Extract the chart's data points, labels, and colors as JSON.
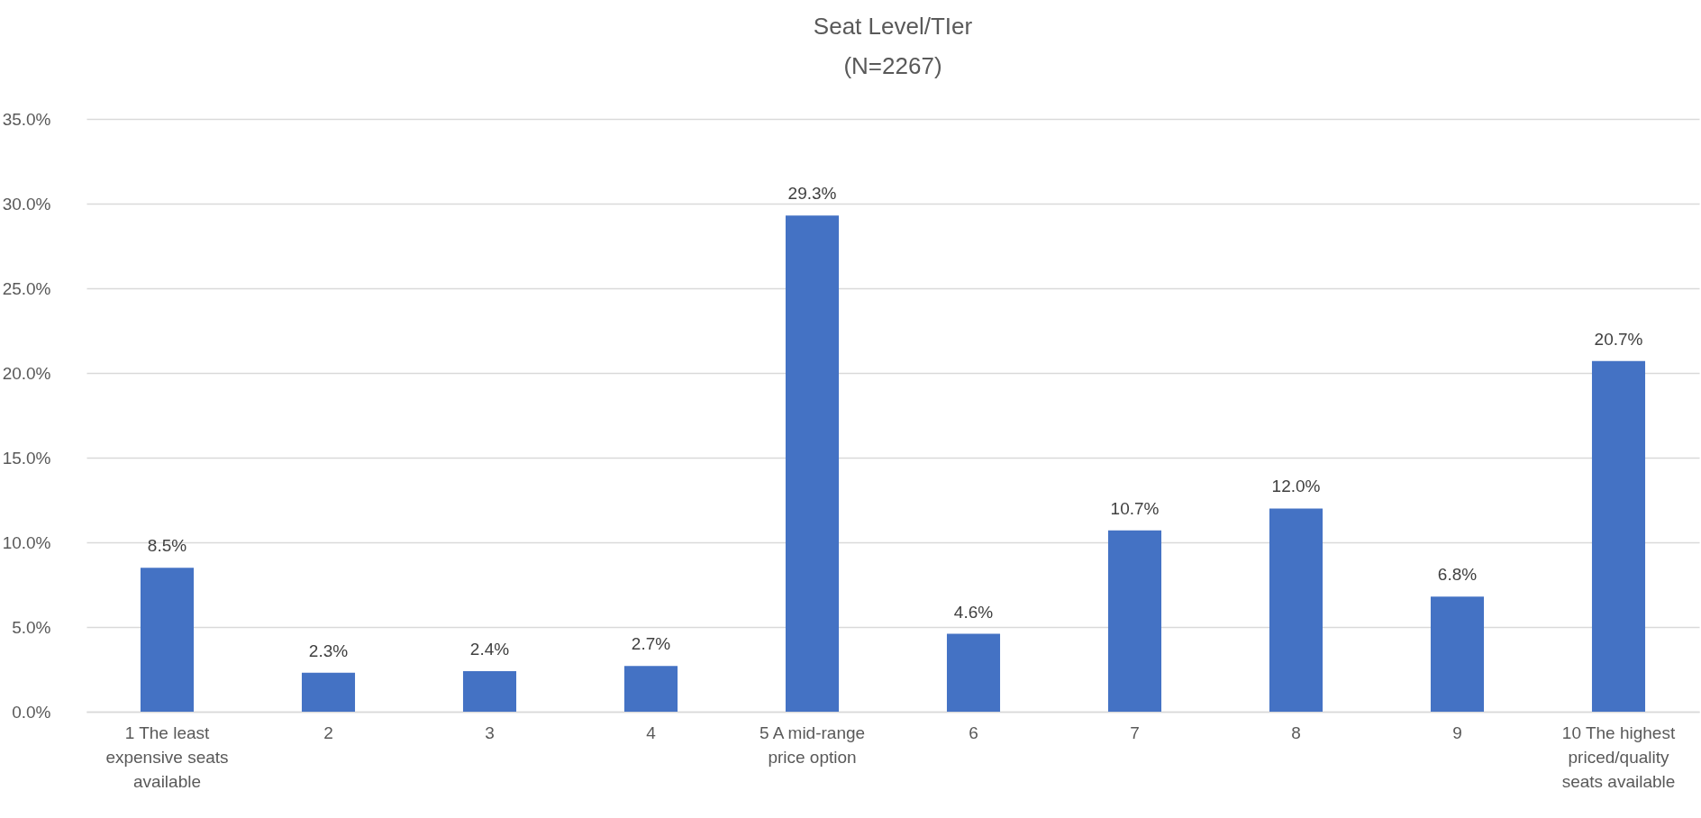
{
  "chart_data": {
    "type": "bar",
    "title": "Seat Level/TIer",
    "subtitle": "(N=2267)",
    "categories": [
      "1 The least expensive seats available",
      "2",
      "3",
      "4",
      "5 A mid-range price option",
      "6",
      "7",
      "8",
      "9",
      "10 The highest priced/quality seats available"
    ],
    "values": [
      8.5,
      2.3,
      2.4,
      2.7,
      29.3,
      4.6,
      10.7,
      12.0,
      6.8,
      20.7
    ],
    "value_labels": [
      "8.5%",
      "2.3%",
      "2.4%",
      "2.7%",
      "29.3%",
      "4.6%",
      "10.7%",
      "12.0%",
      "6.8%",
      "20.7%"
    ],
    "color": "#4472c4",
    "ylim": [
      0,
      35
    ],
    "yticks": [
      {
        "value": 0,
        "label": "0.0%"
      },
      {
        "value": 5,
        "label": "5.0%"
      },
      {
        "value": 10,
        "label": "10.0%"
      },
      {
        "value": 15,
        "label": "15.0%"
      },
      {
        "value": 20,
        "label": "20.0%"
      },
      {
        "value": 25,
        "label": "25.0%"
      },
      {
        "value": 30,
        "label": "30.0%"
      },
      {
        "value": 35,
        "label": "35.0%"
      }
    ],
    "grid": "y"
  }
}
